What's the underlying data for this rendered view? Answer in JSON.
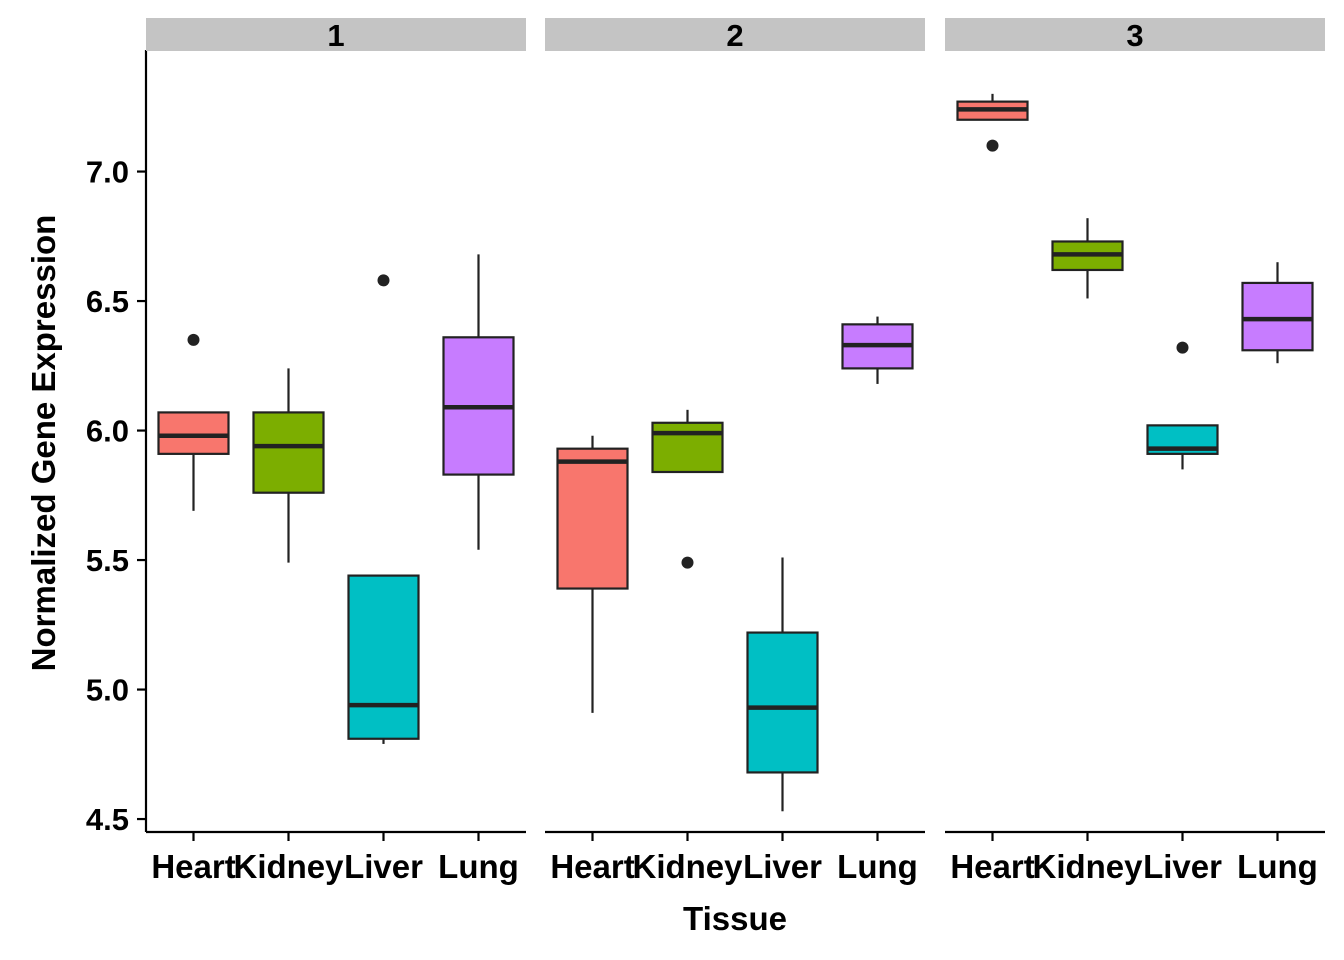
{
  "chart_data": {
    "type": "boxplot",
    "facet_variable": "",
    "xlabel": "Tissue",
    "ylabel": "Normalized Gene Expression",
    "ylim": [
      4.45,
      7.45
    ],
    "y_ticks": [
      4.5,
      5.0,
      5.5,
      6.0,
      6.5,
      7.0
    ],
    "y_tick_labels": [
      "4.5",
      "5.0",
      "5.5",
      "6.0",
      "6.5",
      "7.0"
    ],
    "categories": [
      "Heart",
      "Kidney",
      "Liver",
      "Lung"
    ],
    "colors": {
      "Heart": "#F8766D",
      "Kidney": "#7CAE00",
      "Liver": "#00BFC4",
      "Lung": "#C77CFF"
    },
    "grid": false,
    "legend": "none",
    "panels": [
      {
        "label": "1",
        "boxes": [
          {
            "category": "Heart",
            "whisker_low": 5.69,
            "q1": 5.91,
            "median": 5.98,
            "q3": 6.07,
            "whisker_high": 6.07,
            "outliers": [
              6.35
            ]
          },
          {
            "category": "Kidney",
            "whisker_low": 5.49,
            "q1": 5.76,
            "median": 5.94,
            "q3": 6.07,
            "whisker_high": 6.24,
            "outliers": []
          },
          {
            "category": "Liver",
            "whisker_low": 4.79,
            "q1": 4.81,
            "median": 4.94,
            "q3": 5.44,
            "whisker_high": 5.44,
            "outliers": [
              6.58
            ]
          },
          {
            "category": "Lung",
            "whisker_low": 5.54,
            "q1": 5.83,
            "median": 6.09,
            "q3": 6.36,
            "whisker_high": 6.68,
            "outliers": []
          }
        ]
      },
      {
        "label": "2",
        "boxes": [
          {
            "category": "Heart",
            "whisker_low": 4.91,
            "q1": 5.39,
            "median": 5.88,
            "q3": 5.93,
            "whisker_high": 5.98,
            "outliers": []
          },
          {
            "category": "Kidney",
            "whisker_low": 5.84,
            "q1": 5.84,
            "median": 5.99,
            "q3": 6.03,
            "whisker_high": 6.08,
            "outliers": [
              5.49
            ]
          },
          {
            "category": "Liver",
            "whisker_low": 4.53,
            "q1": 4.68,
            "median": 4.93,
            "q3": 5.22,
            "whisker_high": 5.51,
            "outliers": []
          },
          {
            "category": "Lung",
            "whisker_low": 6.18,
            "q1": 6.24,
            "median": 6.33,
            "q3": 6.41,
            "whisker_high": 6.44,
            "outliers": []
          }
        ]
      },
      {
        "label": "3",
        "boxes": [
          {
            "category": "Heart",
            "whisker_low": 7.2,
            "q1": 7.2,
            "median": 7.24,
            "q3": 7.27,
            "whisker_high": 7.3,
            "outliers": [
              7.1
            ]
          },
          {
            "category": "Kidney",
            "whisker_low": 6.51,
            "q1": 6.62,
            "median": 6.68,
            "q3": 6.73,
            "whisker_high": 6.82,
            "outliers": []
          },
          {
            "category": "Liver",
            "whisker_low": 5.85,
            "q1": 5.91,
            "median": 5.93,
            "q3": 6.02,
            "whisker_high": 6.02,
            "outliers": [
              6.32
            ]
          },
          {
            "category": "Lung",
            "whisker_low": 6.26,
            "q1": 6.31,
            "median": 6.43,
            "q3": 6.57,
            "whisker_high": 6.65,
            "outliers": []
          }
        ]
      }
    ]
  }
}
